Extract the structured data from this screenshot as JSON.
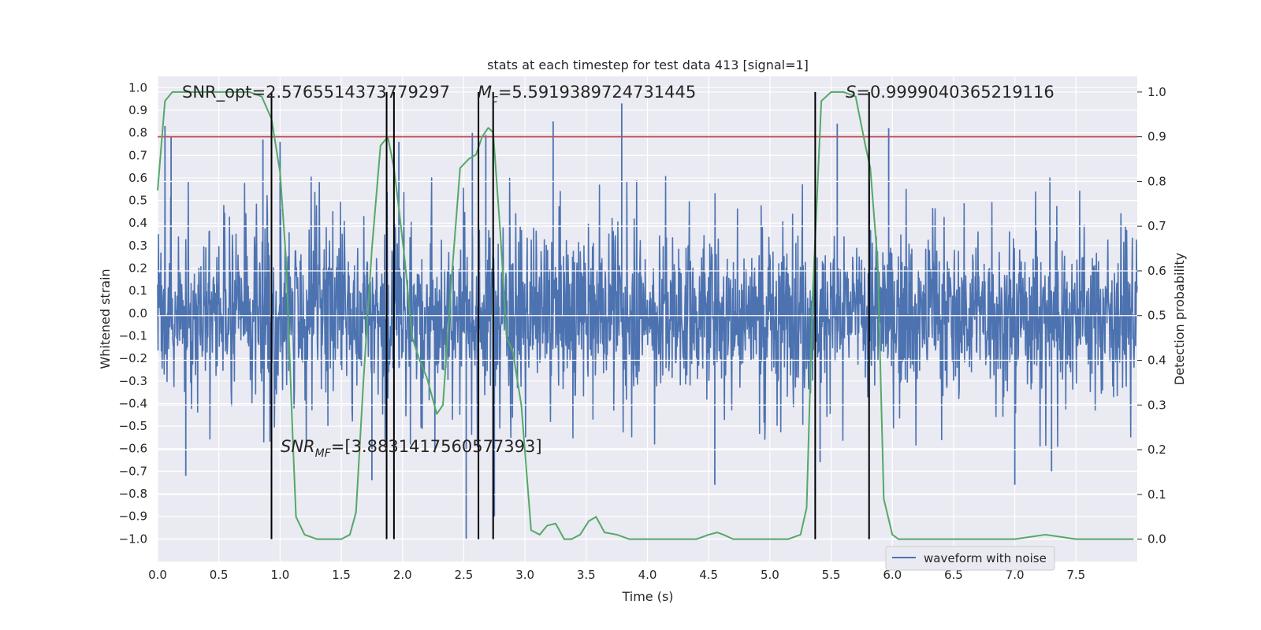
{
  "chart_data": {
    "type": "line",
    "title": "stats at each timestep for test data 413 [signal=1]",
    "xlabel": "Time (s)",
    "ylabel": "Whitened strain",
    "y2label": "Detection probability",
    "xlim": [
      0,
      8
    ],
    "ylim": [
      -1.1,
      1.05
    ],
    "y2lim": [
      -0.05,
      1.035
    ],
    "xticks": [
      "0.0",
      "0.5",
      "1.0",
      "1.5",
      "2.0",
      "2.5",
      "3.0",
      "3.5",
      "4.0",
      "4.5",
      "5.0",
      "5.5",
      "6.0",
      "6.5",
      "7.0",
      "7.5"
    ],
    "yticks": [
      "1.0",
      "0.9",
      "0.8",
      "0.7",
      "0.6",
      "0.5",
      "0.4",
      "0.3",
      "0.2",
      "0.1",
      "0.0",
      "-0.1",
      "-0.2",
      "-0.3",
      "-0.4",
      "-0.5",
      "-0.6",
      "-0.7",
      "-0.8",
      "-0.9",
      "-1.0"
    ],
    "y2ticks": [
      "1.0",
      "0.9",
      "0.8",
      "0.7",
      "0.6",
      "0.5",
      "0.4",
      "0.3",
      "0.2",
      "0.1",
      "0.0"
    ],
    "threshold": {
      "value": 0.9,
      "axis": "y2",
      "color": "#c44e52"
    },
    "vlines": [
      0.93,
      1.87,
      1.93,
      2.62,
      2.74,
      5.37,
      5.81
    ],
    "series": [
      {
        "name": "waveform with noise",
        "axis": "y",
        "color": "#4c72b0",
        "kind": "noise",
        "typical_amplitude": 0.35,
        "peak_amplitude": 0.93,
        "spikes": [
          [
            0.06,
            0.83
          ],
          [
            0.11,
            0.78
          ],
          [
            0.86,
            0.77
          ],
          [
            1.0,
            0.76
          ],
          [
            1.97,
            0.76
          ],
          [
            2.57,
            0.8
          ],
          [
            2.68,
            0.79
          ],
          [
            3.23,
            0.85
          ],
          [
            3.79,
            0.93
          ],
          [
            5.55,
            0.84
          ],
          [
            5.97,
            0.82
          ],
          [
            2.52,
            -1.0
          ],
          [
            2.75,
            -0.9
          ],
          [
            1.75,
            -0.74
          ],
          [
            4.55,
            -0.76
          ],
          [
            7.0,
            -0.76
          ],
          [
            0.23,
            -0.72
          ],
          [
            5.41,
            -0.66
          ],
          [
            7.3,
            -0.7
          ]
        ]
      },
      {
        "name": "detection probability",
        "axis": "y2",
        "color": "#55a868",
        "x": [
          0.0,
          0.06,
          0.12,
          0.2,
          0.4,
          0.6,
          0.75,
          0.85,
          0.93,
          1.0,
          1.05,
          1.1,
          1.13,
          1.2,
          1.3,
          1.5,
          1.57,
          1.62,
          1.68,
          1.75,
          1.82,
          1.88,
          1.93,
          1.97,
          2.02,
          2.08,
          2.14,
          2.2,
          2.28,
          2.33,
          2.4,
          2.47,
          2.54,
          2.6,
          2.65,
          2.7,
          2.74,
          2.8,
          2.85,
          2.9,
          2.97,
          3.05,
          3.12,
          3.18,
          3.25,
          3.32,
          3.38,
          3.45,
          3.52,
          3.58,
          3.65,
          3.75,
          3.85,
          4.0,
          4.2,
          4.4,
          4.5,
          4.57,
          4.62,
          4.7,
          4.8,
          5.0,
          5.15,
          5.25,
          5.3,
          5.35,
          5.42,
          5.5,
          5.6,
          5.7,
          5.78,
          5.82,
          5.88,
          5.93,
          6.0,
          6.05,
          6.2,
          6.5,
          7.0,
          7.25,
          7.5,
          7.8,
          7.97
        ],
        "y": [
          0.78,
          0.98,
          1.0,
          1.0,
          1.0,
          1.0,
          1.0,
          0.99,
          0.94,
          0.82,
          0.62,
          0.25,
          0.05,
          0.01,
          0.0,
          0.0,
          0.01,
          0.06,
          0.35,
          0.65,
          0.88,
          0.9,
          0.83,
          0.74,
          0.62,
          0.45,
          0.4,
          0.36,
          0.28,
          0.3,
          0.58,
          0.83,
          0.85,
          0.86,
          0.9,
          0.92,
          0.91,
          0.68,
          0.45,
          0.42,
          0.3,
          0.02,
          0.01,
          0.03,
          0.035,
          0.0,
          0.0,
          0.01,
          0.04,
          0.05,
          0.015,
          0.01,
          0.0,
          0.0,
          0.0,
          0.0,
          0.01,
          0.015,
          0.01,
          0.0,
          0.0,
          0.0,
          0.0,
          0.01,
          0.07,
          0.55,
          0.98,
          1.0,
          1.0,
          0.99,
          0.88,
          0.83,
          0.62,
          0.09,
          0.01,
          0.0,
          0.0,
          0.0,
          0.0,
          0.01,
          0.0,
          0.0,
          0.0
        ]
      }
    ],
    "annotations": [
      {
        "id": "snr_opt",
        "text": "SNR_opt=2.5765514373779297"
      },
      {
        "id": "mc",
        "text": "=5.5919389724731445",
        "symbol": "M",
        "sub": "c"
      },
      {
        "id": "s",
        "text": "=0.9999040365219116",
        "symbol": "S"
      },
      {
        "id": "snr_mf",
        "text": "=[3.8831417560577393]",
        "symbol": "SNR",
        "sub": "MF"
      }
    ],
    "legend": {
      "label": "waveform with noise",
      "position": "lower-right"
    }
  }
}
